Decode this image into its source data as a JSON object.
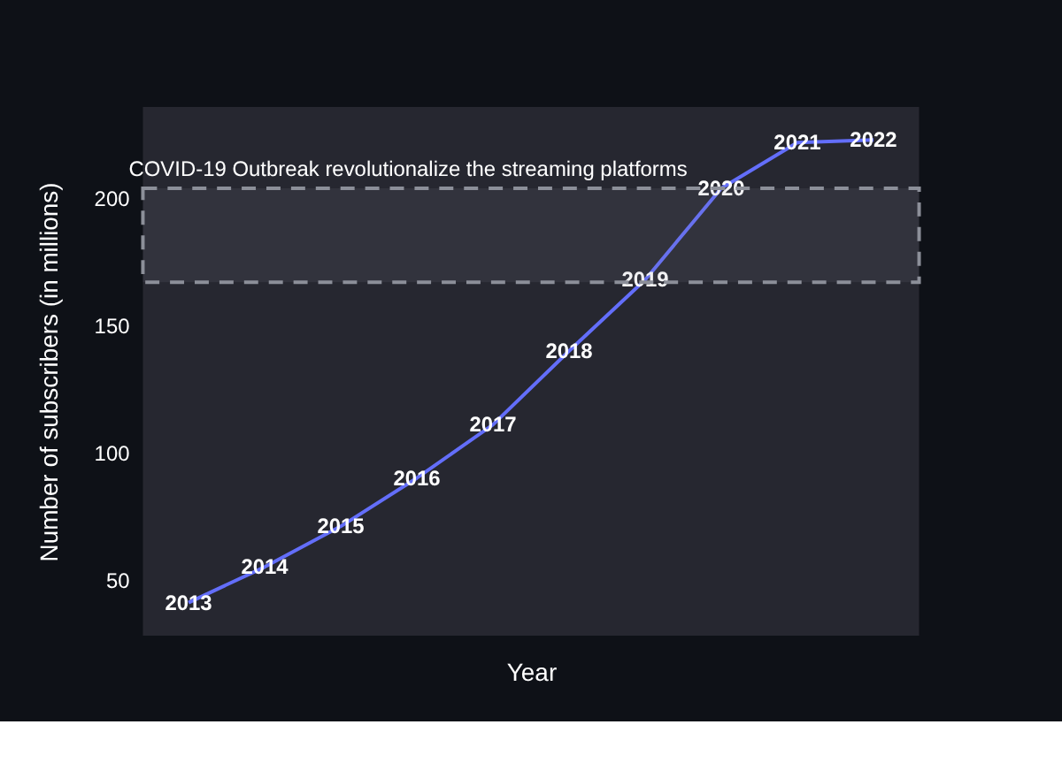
{
  "chart_data": {
    "type": "line",
    "xlabel": "Year",
    "ylabel": "Number of subscribers (in millions)",
    "categories": [
      null,
      null,
      null,
      null,
      null,
      null,
      null,
      null,
      null,
      null
    ],
    "series": [
      {
        "color": "#636efa",
        "values": [
          41,
          55,
          71,
          90,
          111,
          140,
          168,
          204,
          222,
          223
        ]
      }
    ],
    "value_labels": [
      "2013",
      "2014",
      "2015",
      "2016",
      "2017",
      "2018",
      "2019",
      "2020",
      "2021",
      "2022"
    ],
    "ylim": [
      28,
      236
    ],
    "yticks": [
      50,
      100,
      150,
      200
    ],
    "tick_labels": "y",
    "grid": false,
    "marker": "none",
    "line_style": "solid",
    "bands": [
      {
        "axis": "y",
        "from": 167,
        "to": 204,
        "label": "COVID-19 Outbreak revolutionalize the streaming platforms",
        "color": "#8c8f99"
      }
    ]
  }
}
